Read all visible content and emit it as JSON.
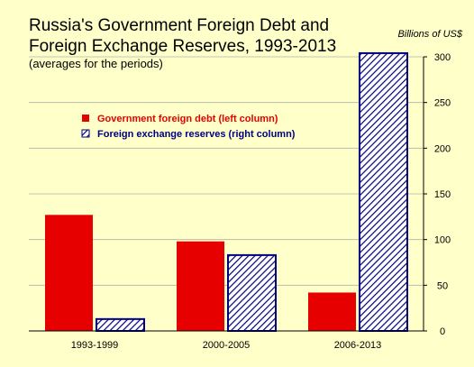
{
  "chart_data": {
    "type": "bar",
    "title_lines": [
      "Russia's Government Foreign Debt and",
      "Foreign Exchange Reserves, 1993-2013"
    ],
    "subtitle": "(averages for the periods)",
    "unit_label": "Billions of US$",
    "categories": [
      "1993-1999",
      "2000-2005",
      "2006-2013"
    ],
    "series": [
      {
        "name": "Government foreign debt (left column)",
        "values": [
          127,
          98,
          42
        ],
        "color": "#e60000",
        "pattern": "solid"
      },
      {
        "name": "Foreign exchange reserves (right column)",
        "values": [
          13,
          83,
          304
        ],
        "color": "#000080",
        "pattern": "diagonal-hatch"
      }
    ],
    "ylim": [
      0,
      300
    ],
    "yticks": [
      0,
      50,
      100,
      150,
      200,
      250,
      300
    ],
    "ytick_labels": [
      "0",
      "50",
      "100",
      "150",
      "200",
      "250",
      "300"
    ],
    "y_axis_side": "right",
    "grid": true,
    "legend_placement": "upper-left inside plot"
  }
}
